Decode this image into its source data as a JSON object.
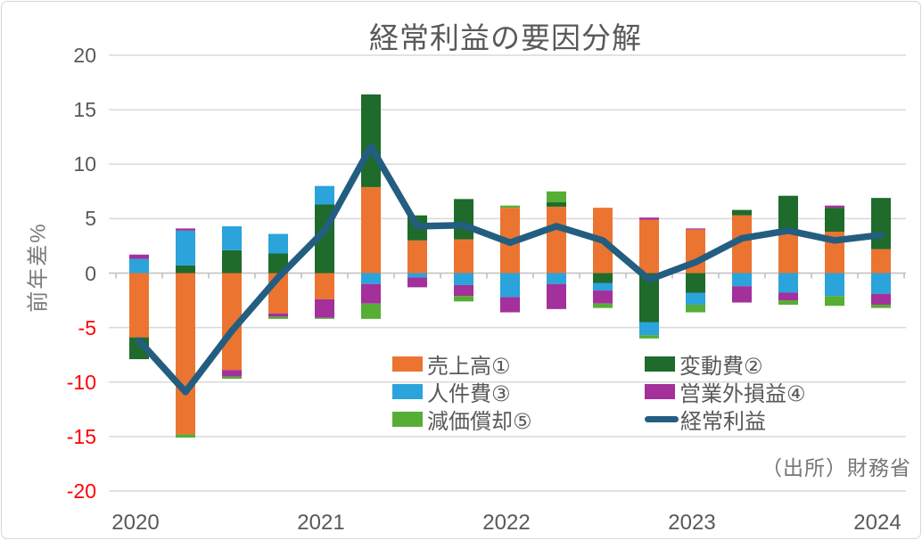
{
  "title": "経常利益の要因分解",
  "source": "（出所）財務省",
  "y_axis": {
    "label": "前年差%",
    "ticks": [
      20,
      15,
      10,
      5,
      0,
      -5,
      -10,
      -15,
      -20
    ],
    "negative_tick_color": "#FF0000",
    "tick_color": "#595959"
  },
  "x_axis": {
    "years": [
      "2020",
      "2021",
      "2022",
      "2023",
      "2024"
    ]
  },
  "colors": {
    "sales": "#EC7431",
    "variable_cost": "#1E6B2B",
    "labor_cost": "#2BA3DB",
    "non_operating": "#A3309B",
    "depreciation": "#56AE35",
    "ordinary_profit": "#235E80",
    "grid": "#D9D9D9",
    "axis": "#C6C6C6",
    "title_gray": "#595959"
  },
  "legend": [
    {
      "key": "sales",
      "label": "売上高①",
      "type": "bar"
    },
    {
      "key": "variable_cost",
      "label": "変動費②",
      "type": "bar"
    },
    {
      "key": "labor_cost",
      "label": "人件費③",
      "type": "bar"
    },
    {
      "key": "non_operating",
      "label": "営業外損益④",
      "type": "bar"
    },
    {
      "key": "depreciation",
      "label": "減価償却⑤",
      "type": "bar"
    },
    {
      "key": "ordinary_profit",
      "label": "経常利益",
      "type": "line"
    }
  ],
  "chart_data": {
    "type": "bar",
    "subtype": "stacked-bar-with-line",
    "title": "経常利益の要因分解",
    "ylabel": "前年差%",
    "ylim": [
      -20,
      20
    ],
    "grid": true,
    "legend_position": "inside-bottom-center",
    "categories": [
      "2020Q1",
      "2020Q2",
      "2020Q3",
      "2020Q4",
      "2021Q1",
      "2021Q2",
      "2021Q3",
      "2021Q4",
      "2022Q1",
      "2022Q2",
      "2022Q3",
      "2022Q4",
      "2023Q1",
      "2023Q2",
      "2023Q3",
      "2023Q4",
      "2024Q1"
    ],
    "series": [
      {
        "key": "sales",
        "name": "売上高①",
        "type": "bar",
        "values": [
          -5.9,
          -14.8,
          -8.9,
          -3.7,
          -2.4,
          7.9,
          3.0,
          3.1,
          6.0,
          6.1,
          6.0,
          4.9,
          4.0,
          5.3,
          3.9,
          3.8,
          2.2
        ]
      },
      {
        "key": "variable_cost",
        "name": "変動費②",
        "type": "bar",
        "values": [
          -2.0,
          0.7,
          2.1,
          1.8,
          6.3,
          8.5,
          2.3,
          3.7,
          0.0,
          0.4,
          -0.9,
          -4.5,
          -1.8,
          0.5,
          3.2,
          2.2,
          4.7
        ]
      },
      {
        "key": "labor_cost",
        "name": "人件費③",
        "type": "bar",
        "values": [
          1.3,
          3.2,
          2.2,
          1.8,
          1.7,
          -1.0,
          -0.4,
          -1.1,
          -2.2,
          -1.0,
          -0.7,
          -1.2,
          -1.1,
          -1.2,
          -1.8,
          -2.1,
          -1.9
        ]
      },
      {
        "key": "non_operating",
        "name": "営業外損益④",
        "type": "bar",
        "values": [
          0.4,
          0.2,
          -0.6,
          -0.3,
          -1.7,
          -1.8,
          -0.9,
          -1.0,
          -1.4,
          -2.3,
          -1.2,
          0.2,
          0.1,
          -1.5,
          -0.7,
          0.2,
          -1.0
        ]
      },
      {
        "key": "depreciation",
        "name": "減価償却⑤",
        "type": "bar",
        "values": [
          0.0,
          -0.3,
          -0.2,
          -0.2,
          -0.1,
          -1.4,
          0.0,
          -0.5,
          0.2,
          1.0,
          -0.4,
          -0.3,
          -0.7,
          0.0,
          -0.4,
          -0.9,
          -0.3
        ]
      },
      {
        "key": "ordinary_profit",
        "name": "経常利益",
        "type": "line",
        "values": [
          -6.2,
          -10.9,
          -5.3,
          -0.4,
          3.9,
          11.6,
          4.3,
          4.4,
          2.8,
          4.3,
          3.0,
          -0.6,
          1.0,
          3.2,
          3.9,
          3.0,
          3.5
        ]
      }
    ]
  }
}
